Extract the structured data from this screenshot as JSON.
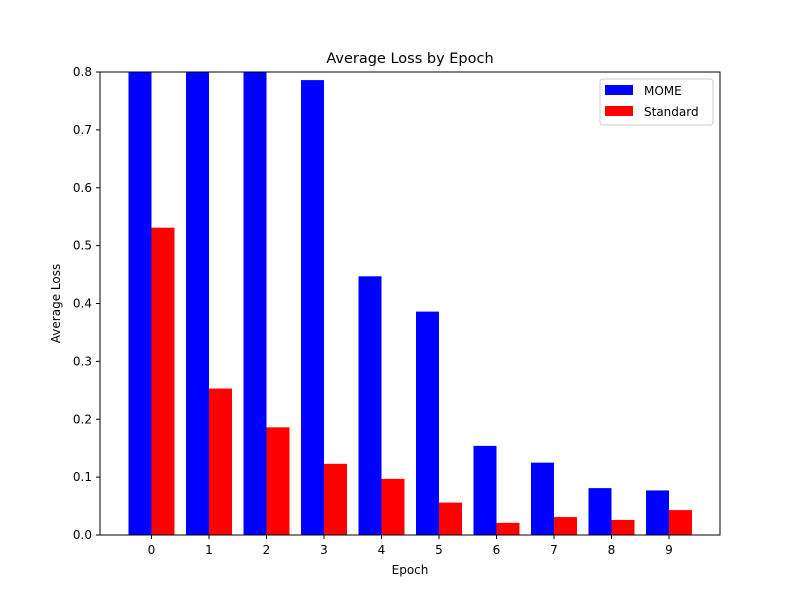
{
  "chart_data": {
    "type": "bar",
    "title": "Average Loss by Epoch",
    "xlabel": "Epoch",
    "ylabel": "Average Loss",
    "categories": [
      "0",
      "1",
      "2",
      "3",
      "4",
      "5",
      "6",
      "7",
      "8",
      "9"
    ],
    "series": [
      {
        "name": "MOME",
        "color": "#0000ff",
        "values": [
          0.8,
          0.8,
          0.8,
          0.786,
          0.447,
          0.386,
          0.154,
          0.125,
          0.081,
          0.077
        ]
      },
      {
        "name": "Standard",
        "color": "#ff0000",
        "values": [
          0.531,
          0.253,
          0.186,
          0.123,
          0.097,
          0.056,
          0.021,
          0.031,
          0.026,
          0.043
        ]
      }
    ],
    "ylim": [
      0,
      0.8
    ],
    "yticks": [
      "0.0",
      "0.1",
      "0.2",
      "0.3",
      "0.4",
      "0.5",
      "0.6",
      "0.7",
      "0.8"
    ],
    "grid": false,
    "legend_position": "top-right"
  }
}
